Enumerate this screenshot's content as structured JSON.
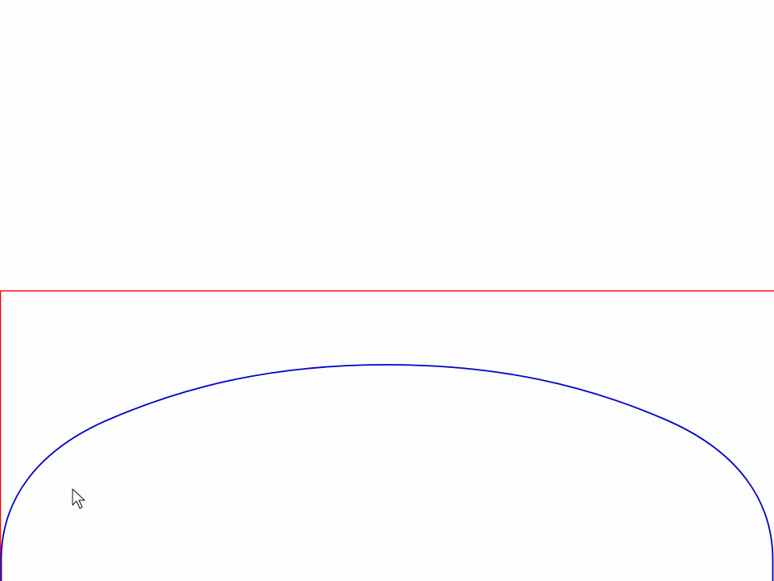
{
  "canvas": {
    "background_color": "#fdfdfd"
  },
  "shapes": {
    "rectangle": {
      "name": "red-rectangle-outline",
      "stroke_color": "#ff0000"
    },
    "ellipse": {
      "name": "blue-ellipse-outline",
      "stroke_color": "#0000cc"
    }
  },
  "cursor": {
    "icon": "mouse-pointer-icon"
  }
}
